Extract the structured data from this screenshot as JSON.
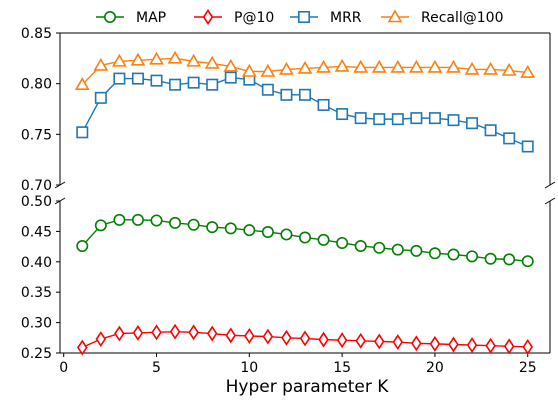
{
  "chart_data": {
    "type": "line",
    "xlabel": "Hyper parameter K",
    "x": [
      1,
      2,
      3,
      4,
      5,
      6,
      7,
      8,
      9,
      10,
      11,
      12,
      13,
      14,
      15,
      16,
      17,
      18,
      19,
      20,
      21,
      22,
      23,
      24,
      25
    ],
    "xticks": [
      "0",
      "5",
      "10",
      "15",
      "20",
      "25"
    ],
    "xlim": [
      -0.2,
      26.2
    ],
    "broken_y_axis": true,
    "upper_ylim": [
      0.7,
      0.85
    ],
    "upper_yticks": [
      "0.70",
      "0.75",
      "0.80",
      "0.85"
    ],
    "lower_ylim": [
      0.25,
      0.5
    ],
    "lower_yticks": [
      "0.25",
      "0.30",
      "0.35",
      "0.40",
      "0.45",
      "0.50"
    ],
    "legend_position": "top-center",
    "series": [
      {
        "name": "MAP",
        "color": "#008000",
        "marker": "circle",
        "panel": "lower",
        "values": [
          0.426,
          0.46,
          0.469,
          0.469,
          0.468,
          0.464,
          0.461,
          0.457,
          0.455,
          0.452,
          0.449,
          0.445,
          0.44,
          0.436,
          0.431,
          0.426,
          0.423,
          0.42,
          0.418,
          0.414,
          0.412,
          0.409,
          0.405,
          0.404,
          0.401
        ]
      },
      {
        "name": "P@10",
        "color": "#ff0000",
        "marker": "diamond",
        "panel": "lower",
        "values": [
          0.259,
          0.273,
          0.282,
          0.283,
          0.284,
          0.285,
          0.284,
          0.282,
          0.279,
          0.278,
          0.277,
          0.275,
          0.274,
          0.272,
          0.271,
          0.27,
          0.269,
          0.268,
          0.266,
          0.265,
          0.264,
          0.263,
          0.262,
          0.261,
          0.26
        ]
      },
      {
        "name": "MRR",
        "color": "#1f77b4",
        "marker": "square",
        "panel": "upper",
        "values": [
          0.752,
          0.786,
          0.805,
          0.805,
          0.803,
          0.799,
          0.801,
          0.799,
          0.806,
          0.804,
          0.794,
          0.789,
          0.789,
          0.779,
          0.77,
          0.766,
          0.765,
          0.765,
          0.766,
          0.766,
          0.764,
          0.761,
          0.754,
          0.746,
          0.738
        ]
      },
      {
        "name": "Recall@100",
        "color": "#ff7f0e",
        "marker": "triangle",
        "panel": "upper",
        "values": [
          0.799,
          0.818,
          0.822,
          0.823,
          0.824,
          0.825,
          0.822,
          0.82,
          0.817,
          0.812,
          0.812,
          0.814,
          0.815,
          0.816,
          0.817,
          0.816,
          0.816,
          0.816,
          0.816,
          0.816,
          0.816,
          0.814,
          0.814,
          0.813,
          0.811
        ]
      }
    ]
  }
}
